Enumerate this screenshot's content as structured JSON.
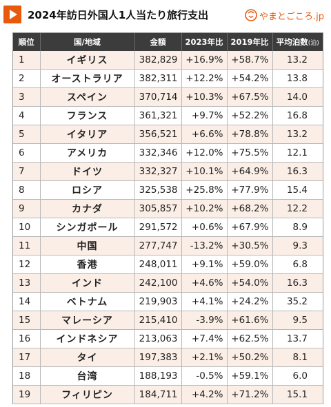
{
  "header": {
    "title": "2024年訪日外国人1人当たり旅行支出",
    "brand": "やまとごころ.jp",
    "accent_color": "#e8590c"
  },
  "table": {
    "columns": [
      "順位",
      "国/地域",
      "金額",
      "2023年比",
      "2019年比",
      "平均泊数",
      "(泊)"
    ],
    "rows": [
      [
        "1",
        "イギリス",
        "382,829",
        "+16.9%",
        "+58.7%",
        "13.2"
      ],
      [
        "2",
        "オーストラリア",
        "382,311",
        "+12.2%",
        "+54.2%",
        "13.8"
      ],
      [
        "3",
        "スペイン",
        "370,714",
        "+10.3%",
        "+67.5%",
        "14.0"
      ],
      [
        "4",
        "フランス",
        "361,321",
        "+9.7%",
        "+52.2%",
        "16.8"
      ],
      [
        "5",
        "イタリア",
        "356,521",
        "+6.6%",
        "+78.8%",
        "13.2"
      ],
      [
        "6",
        "アメリカ",
        "332,346",
        "+12.0%",
        "+75.5%",
        "12.1"
      ],
      [
        "7",
        "ドイツ",
        "332,327",
        "+10.1%",
        "+64.9%",
        "16.3"
      ],
      [
        "8",
        "ロシア",
        "325,538",
        "+25.8%",
        "+77.9%",
        "15.4"
      ],
      [
        "9",
        "カナダ",
        "305,857",
        "+10.2%",
        "+68.2%",
        "12.2"
      ],
      [
        "10",
        "シンガポール",
        "291,572",
        "+0.6%",
        "+67.9%",
        "8.9"
      ],
      [
        "11",
        "中国",
        "277,747",
        "-13.2%",
        "+30.5%",
        "9.3"
      ],
      [
        "12",
        "香港",
        "248,011",
        "+9.1%",
        "+59.0%",
        "6.8"
      ],
      [
        "13",
        "インド",
        "242,100",
        "+4.6%",
        "+54.0%",
        "16.3"
      ],
      [
        "14",
        "ベトナム",
        "219,903",
        "+4.1%",
        "+24.2%",
        "35.2"
      ],
      [
        "15",
        "マレーシア",
        "215,410",
        "-3.9%",
        "+61.6%",
        "9.5"
      ],
      [
        "16",
        "インドネシア",
        "213,063",
        "+7.4%",
        "+62.5%",
        "13.7"
      ],
      [
        "17",
        "タイ",
        "197,383",
        "+2.1%",
        "+50.2%",
        "8.1"
      ],
      [
        "18",
        "台湾",
        "188,193",
        "-0.5%",
        "+59.1%",
        "6.0"
      ],
      [
        "19",
        "フィリピン",
        "184,711",
        "+4.2%",
        "+71.2%",
        "15.1"
      ]
    ]
  }
}
